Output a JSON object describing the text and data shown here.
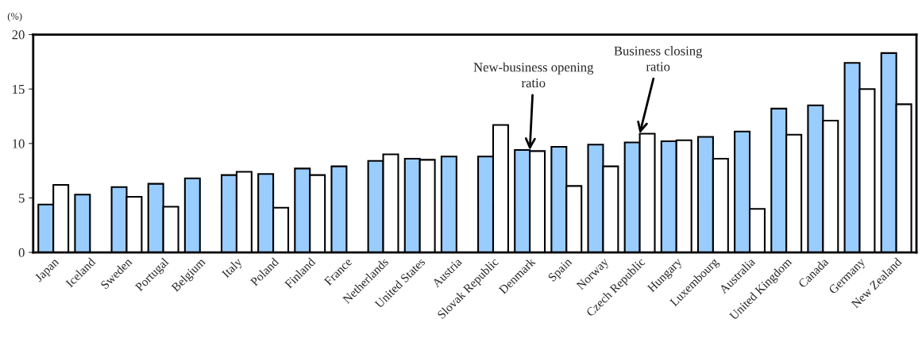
{
  "chart_data": {
    "type": "bar",
    "ylabel": "(%)",
    "categories": [
      "Japan",
      "Iceland",
      "Sweden",
      "Portugal",
      "Belgium",
      "Italy",
      "Poland",
      "Finland",
      "France",
      "Netherlands",
      "United States",
      "Austria",
      "Slovak Republic",
      "Denmark",
      "Spain",
      "Norway",
      "Czech Republic",
      "Hungary",
      "Luxembourg",
      "Australia",
      "United Kingdom",
      "Canada",
      "Germany",
      "New Zealand"
    ],
    "series": [
      {
        "color": "#99ccff",
        "values": [
          4.4,
          5.3,
          6.0,
          6.3,
          6.8,
          7.1,
          7.2,
          7.7,
          7.9,
          8.4,
          8.6,
          8.8,
          8.8,
          9.4,
          9.7,
          9.9,
          10.1,
          10.2,
          10.6,
          11.1,
          13.2,
          13.5,
          17.4,
          18.3
        ]
      },
      {
        "color": "#ffffff",
        "values": [
          6.2,
          null,
          5.1,
          4.2,
          null,
          7.4,
          4.1,
          7.1,
          null,
          9.0,
          8.5,
          null,
          11.7,
          9.3,
          6.1,
          7.9,
          10.9,
          10.3,
          8.6,
          4.0,
          10.8,
          12.1,
          15.0,
          13.6
        ]
      }
    ],
    "ylim": [
      0,
      20
    ],
    "yticks": [
      0,
      5,
      10,
      15,
      20
    ],
    "grid": false,
    "legend": false,
    "annotations": [
      {
        "text": "New-business opening\nratio",
        "x": "Denmark",
        "y": 9.4
      },
      {
        "text": "Business closing\nratio",
        "x": "Czech Republic",
        "y": 10.9
      }
    ]
  }
}
